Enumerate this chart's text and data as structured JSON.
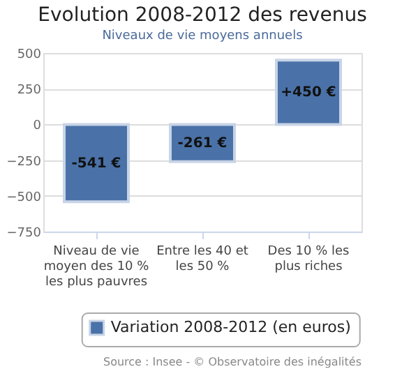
{
  "chart_data": {
    "type": "bar",
    "title": "Evolution 2008-2012 des revenus",
    "subtitle": "Niveaux de vie moyens annuels",
    "categories": [
      "Niveau de vie moyen des 10 % les plus pauvres",
      "Entre les 40 et les 50 %",
      "Des 10 % les plus riches"
    ],
    "series": [
      {
        "name": "Variation 2008-2012 (en euros)",
        "color": "#4a72a8",
        "values": [
          -541,
          -261,
          450
        ],
        "value_labels": [
          "-541 €",
          "-261 €",
          "+450 €"
        ]
      }
    ],
    "ylim": [
      -750,
      500
    ],
    "yticks": [
      -750,
      -500,
      -250,
      0,
      250,
      500
    ],
    "grid": "y",
    "legend": "bottom",
    "annotations": [
      "Source : Insee - © Observatoire des inégalités"
    ]
  }
}
